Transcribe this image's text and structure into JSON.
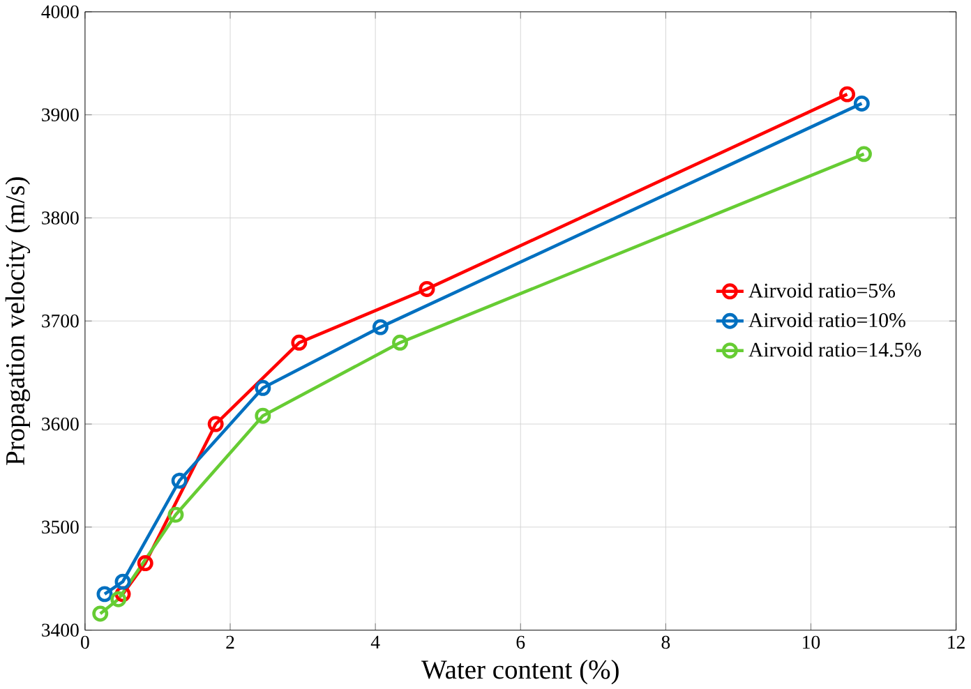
{
  "chart_data": {
    "type": "line",
    "xlabel": "Water content (%)",
    "ylabel": "Propagation velocity (m/s)",
    "xlim": [
      0,
      12
    ],
    "xticks": [
      0,
      2,
      4,
      6,
      8,
      10,
      12
    ],
    "ylim": [
      3400,
      4000
    ],
    "yticks": [
      3400,
      3500,
      3600,
      3700,
      3800,
      3900,
      4000
    ],
    "grid": true,
    "legend": "right",
    "marker": "circle",
    "line_style": "solid",
    "series": [
      {
        "name": "Airvoid ratio=5%",
        "color": "#ff0000",
        "x": [
          0.52,
          0.83,
          1.8,
          2.95,
          4.71,
          10.5
        ],
        "values": [
          3435,
          3465,
          3600,
          3679,
          3731,
          3920
        ]
      },
      {
        "name": "Airvoid ratio=10%",
        "color": "#0070c0",
        "x": [
          0.27,
          0.52,
          1.3,
          2.45,
          4.07,
          10.7
        ],
        "values": [
          3435,
          3447,
          3545,
          3635,
          3694,
          3911
        ]
      },
      {
        "name": "Airvoid ratio=14.5%",
        "color": "#66cc33",
        "x": [
          0.21,
          0.46,
          1.25,
          2.45,
          4.34,
          10.73
        ],
        "values": [
          3416,
          3430,
          3512,
          3608,
          3679,
          3862
        ]
      }
    ]
  }
}
